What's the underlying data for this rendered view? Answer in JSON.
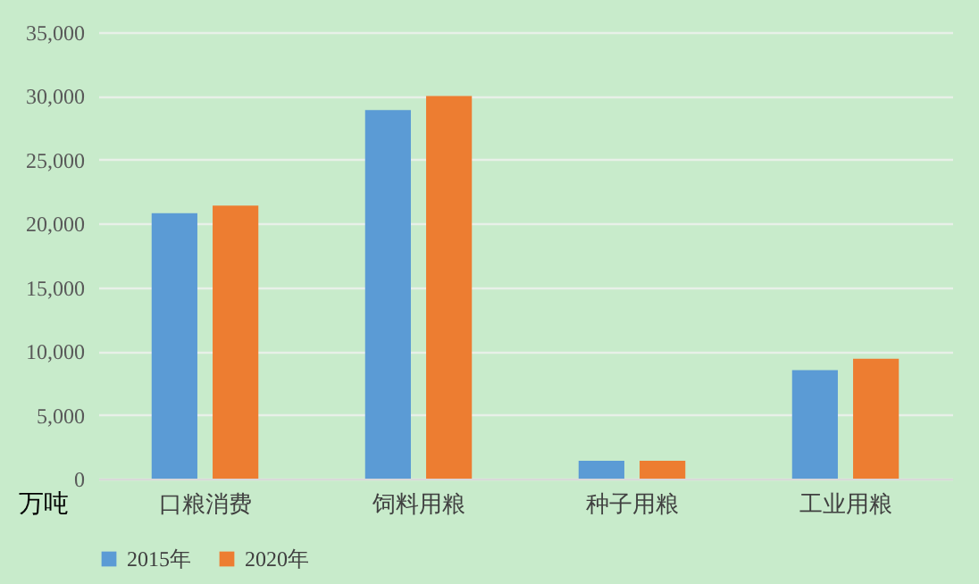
{
  "chart_data": {
    "type": "bar",
    "ylabel": "万吨",
    "categories": [
      "口粮消费",
      "饲料用粮",
      "种子用粮",
      "工业用粮"
    ],
    "series": [
      {
        "name": "2015年",
        "color": "#5b9bd5",
        "values": [
          20800,
          28900,
          1400,
          8500
        ]
      },
      {
        "name": "2020年",
        "color": "#ed7d31",
        "values": [
          21400,
          30000,
          1400,
          9400
        ]
      }
    ],
    "ylim": [
      0,
      35000
    ],
    "yticks": [
      0,
      {
        "value": 5000,
        "label": "5,000"
      },
      {
        "value": 10000,
        "label": "10,000"
      },
      {
        "value": 15000,
        "label": "15,000"
      },
      {
        "value": 20000,
        "label": "20,000"
      },
      {
        "value": 25000,
        "label": "25,000"
      },
      {
        "value": 30000,
        "label": "30,000"
      },
      {
        "value": 35000,
        "label": "35,000"
      }
    ],
    "grid": "y",
    "legend": "bottom"
  }
}
